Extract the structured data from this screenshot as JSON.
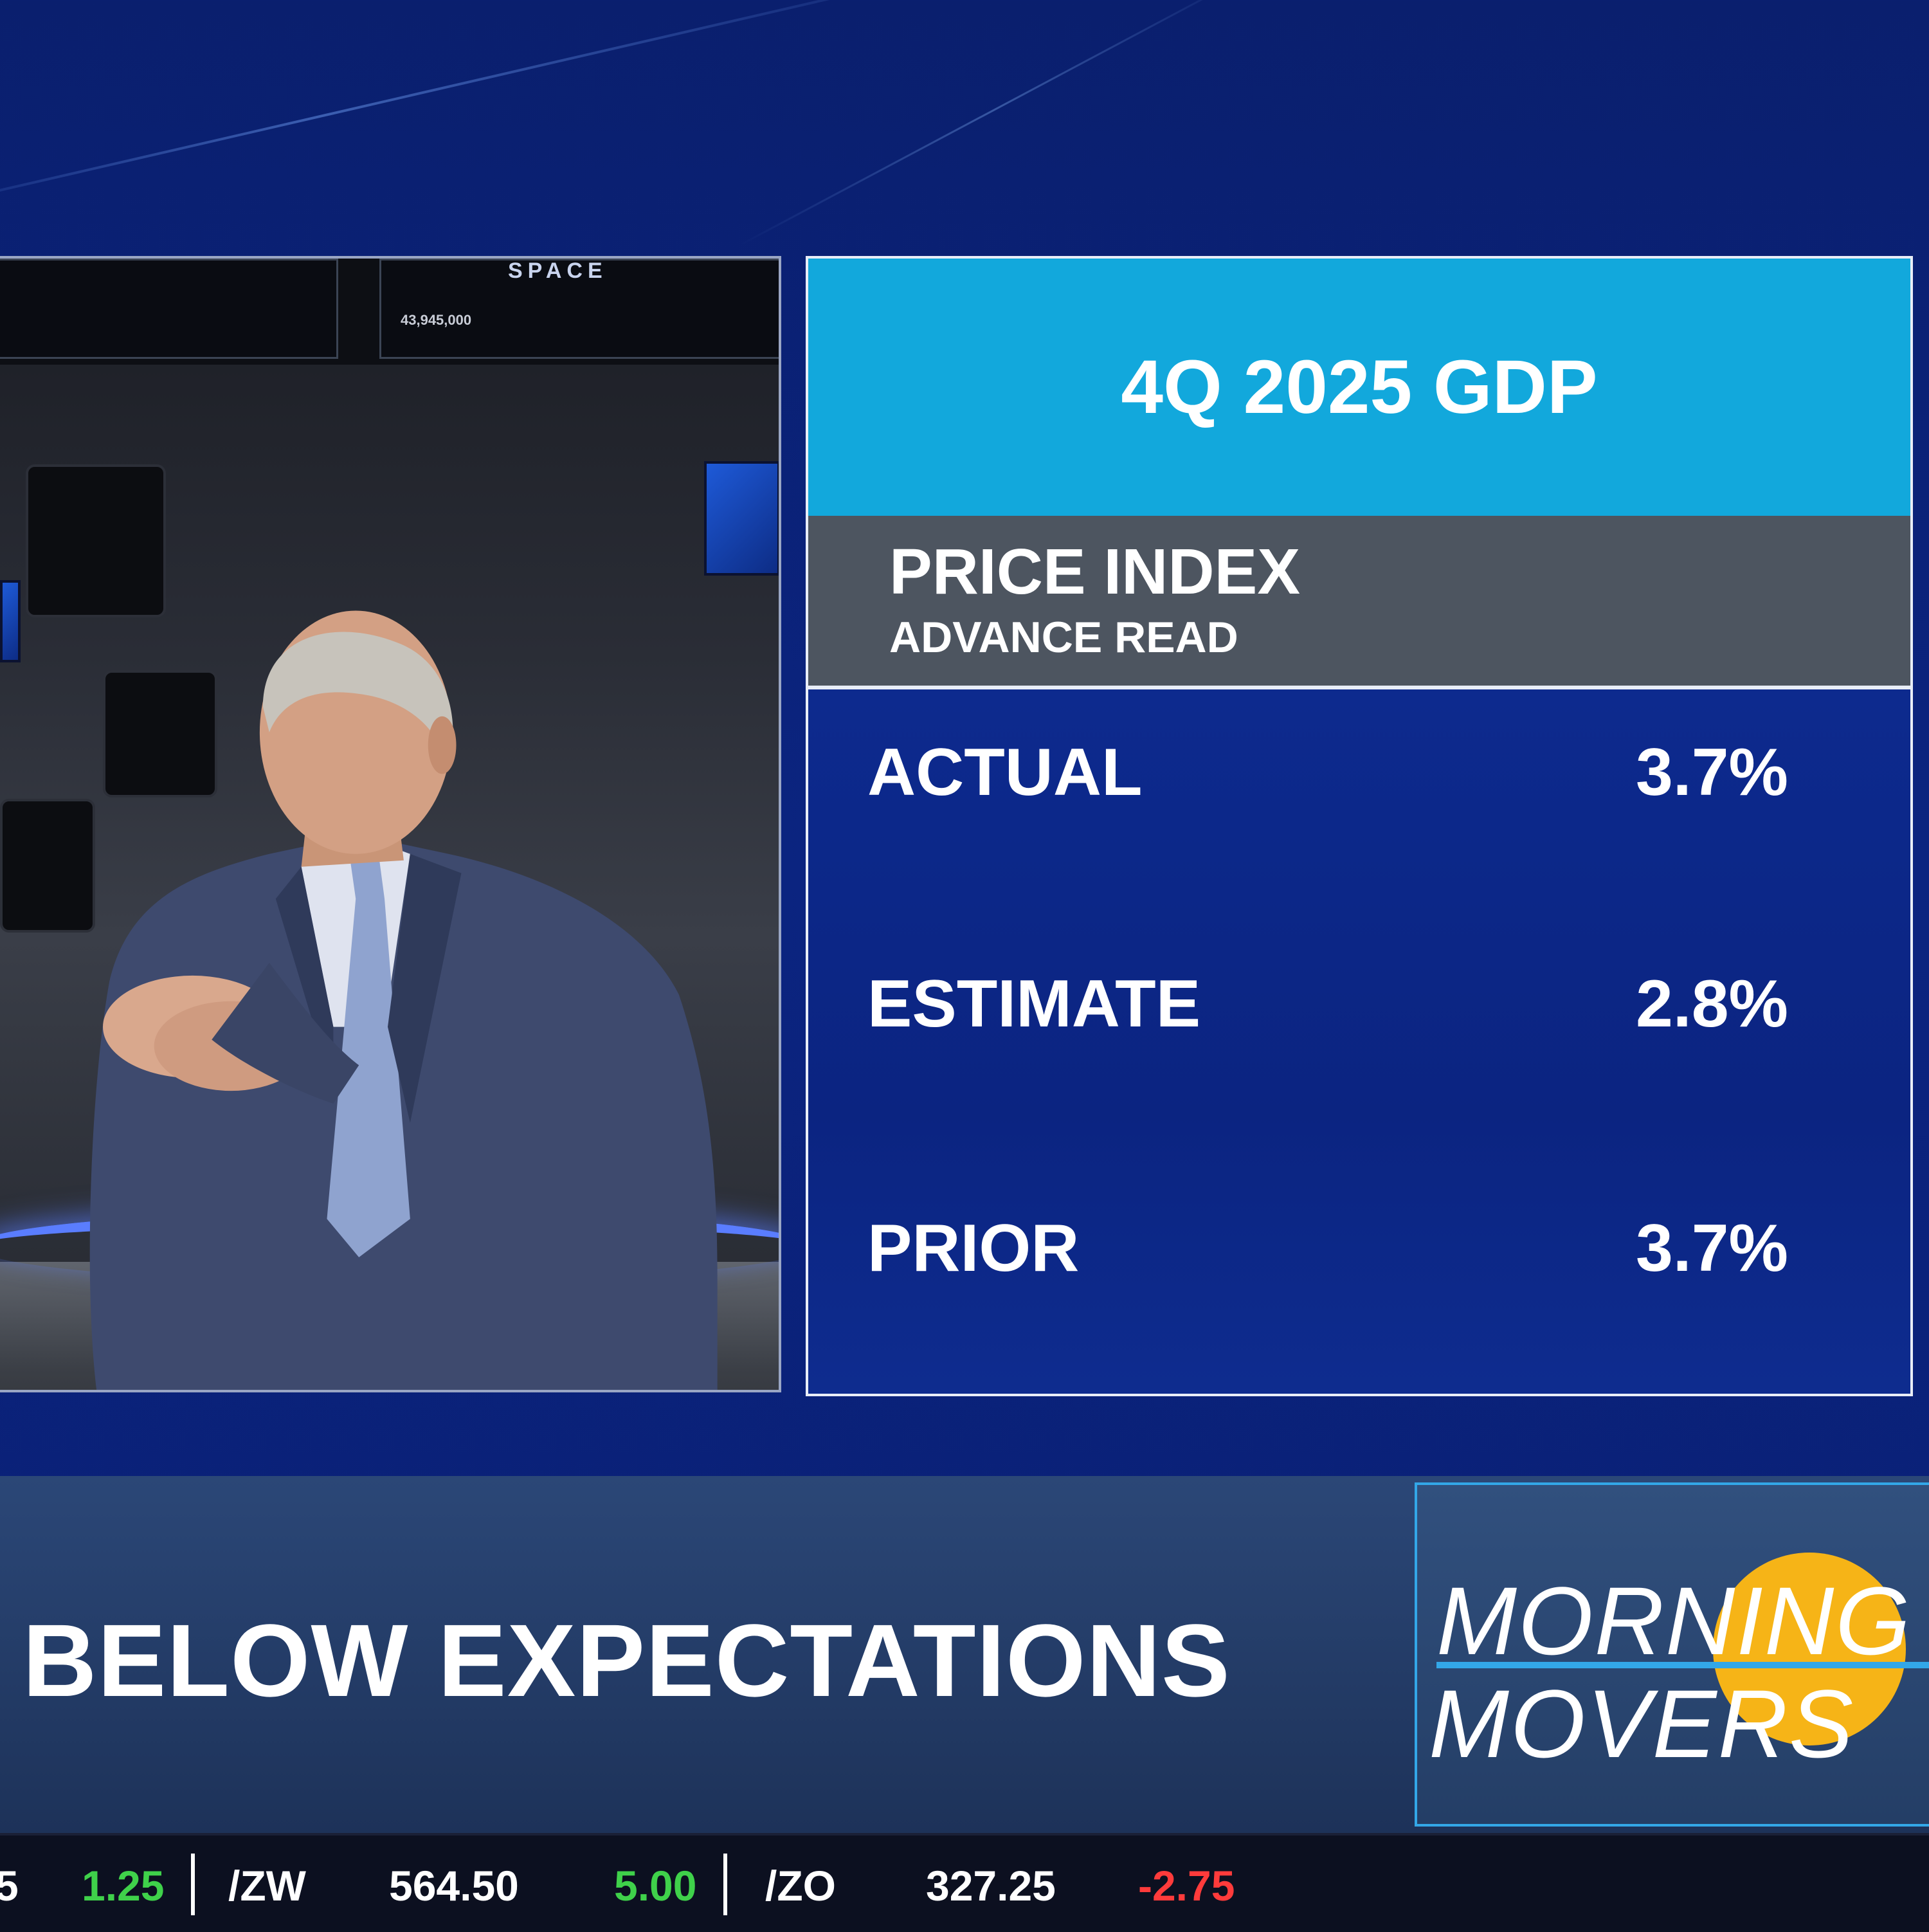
{
  "card": {
    "title": "4Q 2025 GDP",
    "subtitle": "PRICE INDEX",
    "subsubtitle": "ADVANCE READ",
    "rows": [
      {
        "label": "ACTUAL",
        "value": "3.7%"
      },
      {
        "label": "ESTIMATE",
        "value": "2.8%"
      },
      {
        "label": "PRIOR",
        "value": "3.7%"
      }
    ],
    "colors": {
      "header": "#12a8dc",
      "subheader": "#4d5560",
      "body": "#0b2a8a"
    }
  },
  "video": {
    "monitor_logo": "SPACE",
    "monitor_number": "43,945,000"
  },
  "lower_third": {
    "headline": "BELOW EXPECTATIONS",
    "show_line1": "MORNING",
    "show_line2": "MOVERS"
  },
  "ticker": {
    "items": [
      {
        "text": "5",
        "color": "white"
      },
      {
        "text": "1.25",
        "color": "green"
      },
      {
        "text": "/ZW",
        "color": "white"
      },
      {
        "text": "564.50",
        "color": "white"
      },
      {
        "text": "5.00",
        "color": "green"
      },
      {
        "text": "/ZO",
        "color": "white"
      },
      {
        "text": "327.25",
        "color": "white"
      },
      {
        "text": "-2.75",
        "color": "red"
      }
    ]
  }
}
